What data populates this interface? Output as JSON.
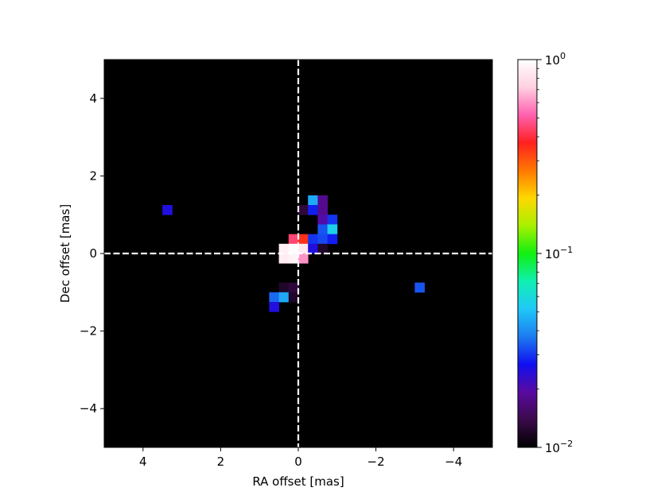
{
  "chart_data": {
    "type": "heatmap",
    "title": "",
    "xlabel": "RA offset [mas]",
    "ylabel": "Dec offset [mas]",
    "xlim": [
      5,
      -5
    ],
    "ylim": [
      -5,
      5
    ],
    "xticks": [
      4,
      2,
      0,
      -2,
      -4
    ],
    "xtick_labels": [
      "4",
      "2",
      "0",
      "−2",
      "−4"
    ],
    "yticks": [
      4,
      2,
      0,
      -2,
      -4
    ],
    "ytick_labels": [
      "4",
      "2",
      "0",
      "−2",
      "−4"
    ],
    "grid": false,
    "pixel_size_mas": 0.25,
    "background_color": "#000000",
    "crosshair": {
      "x": 0,
      "y": 0,
      "style": "dashed",
      "color": "#ffffff"
    },
    "colorbar": {
      "scale": "log",
      "min": 0.01,
      "max": 1,
      "colormap": "gist_ncar-like (black-purple-blue-cyan-green-yellow-red-pink-white)",
      "stops": [
        "#000000",
        "#3a0a4a",
        "#5a0aa0",
        "#1010f0",
        "#1c7cf0",
        "#20c8f8",
        "#10f0b0",
        "#10f010",
        "#a8f000",
        "#ffd800",
        "#ff7800",
        "#ff2020",
        "#ff60b0",
        "#ffd0e0",
        "#ffffff"
      ],
      "tick_labels": [
        {
          "base": "10",
          "exp": "0",
          "value": 1
        },
        {
          "base": "10",
          "exp": "−1",
          "value": 0.1
        },
        {
          "base": "10",
          "exp": "−2",
          "value": 0.01
        }
      ]
    },
    "pixels": [
      {
        "ra": 3.375,
        "dec": 1.125,
        "value": 0.025
      },
      {
        "ra": -3.125,
        "dec": -0.875,
        "value": 0.033
      },
      {
        "ra": -0.375,
        "dec": 1.375,
        "value": 0.045
      },
      {
        "ra": -0.625,
        "dec": 1.375,
        "value": 0.018
      },
      {
        "ra": -0.125,
        "dec": 1.125,
        "value": 0.013
      },
      {
        "ra": -0.375,
        "dec": 1.125,
        "value": 0.028
      },
      {
        "ra": -0.625,
        "dec": 1.125,
        "value": 0.018
      },
      {
        "ra": -0.625,
        "dec": 0.875,
        "value": 0.02
      },
      {
        "ra": -0.875,
        "dec": 0.875,
        "value": 0.03
      },
      {
        "ra": -0.625,
        "dec": 0.625,
        "value": 0.033
      },
      {
        "ra": -0.875,
        "dec": 0.625,
        "value": 0.055
      },
      {
        "ra": 0.125,
        "dec": 0.375,
        "value": 0.45
      },
      {
        "ra": -0.125,
        "dec": 0.375,
        "value": 0.35
      },
      {
        "ra": -0.375,
        "dec": 0.375,
        "value": 0.03
      },
      {
        "ra": -0.625,
        "dec": 0.375,
        "value": 0.032
      },
      {
        "ra": -0.875,
        "dec": 0.375,
        "value": 0.028
      },
      {
        "ra": 0.375,
        "dec": 0.125,
        "value": 0.9
      },
      {
        "ra": 0.125,
        "dec": 0.125,
        "value": 0.98
      },
      {
        "ra": -0.125,
        "dec": 0.125,
        "value": 0.85
      },
      {
        "ra": -0.375,
        "dec": 0.125,
        "value": 0.025
      },
      {
        "ra": -0.625,
        "dec": 0.125,
        "value": 0.012
      },
      {
        "ra": 0.375,
        "dec": -0.125,
        "value": 0.88
      },
      {
        "ra": 0.125,
        "dec": -0.125,
        "value": 0.92
      },
      {
        "ra": -0.125,
        "dec": -0.125,
        "value": 0.6
      },
      {
        "ra": 0.375,
        "dec": -0.875,
        "value": 0.012
      },
      {
        "ra": 0.125,
        "dec": -0.875,
        "value": 0.013
      },
      {
        "ra": 0.625,
        "dec": -1.125,
        "value": 0.035
      },
      {
        "ra": 0.375,
        "dec": -1.125,
        "value": 0.045
      },
      {
        "ra": 0.125,
        "dec": -1.125,
        "value": 0.012
      },
      {
        "ra": 0.625,
        "dec": -1.375,
        "value": 0.025
      }
    ]
  }
}
